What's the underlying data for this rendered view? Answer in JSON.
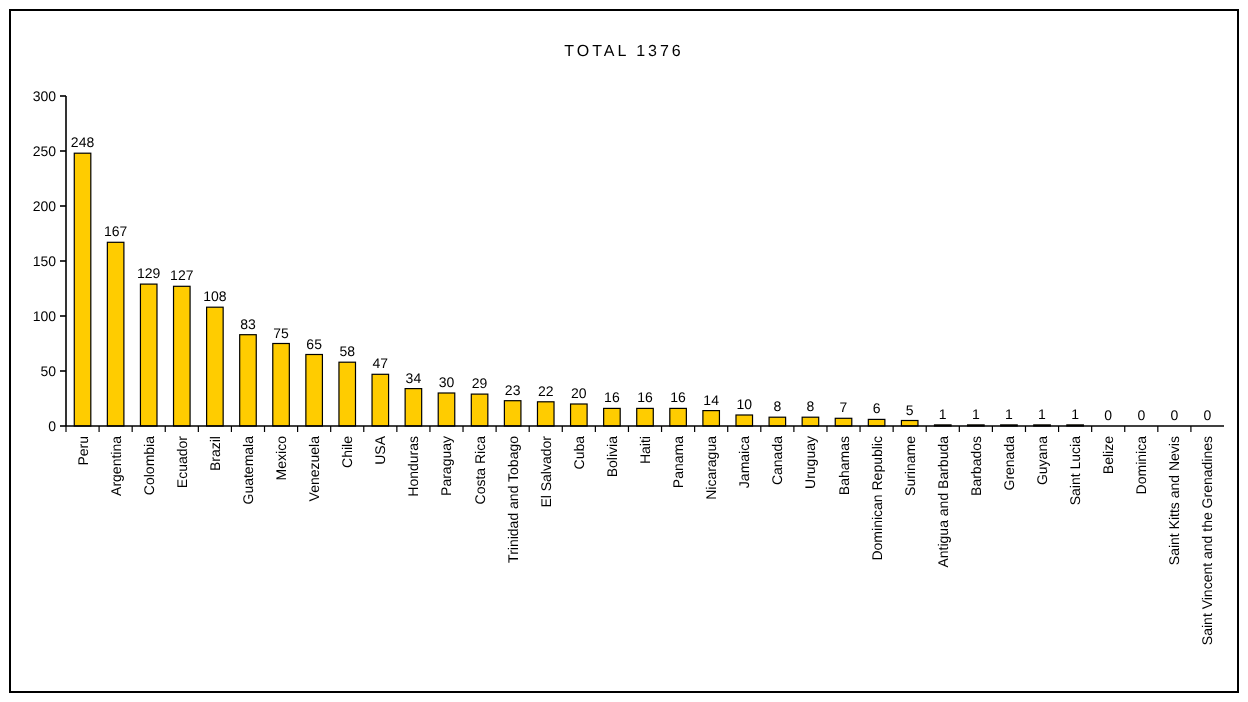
{
  "chart_data": {
    "type": "bar",
    "title": "TOTAL 1376",
    "categories": [
      "Peru",
      "Argentina",
      "Colombia",
      "Ecuador",
      "Brazil",
      "Guatemala",
      "Mexico",
      "Venezuela",
      "Chile",
      "USA",
      "Honduras",
      "Paraguay",
      "Costa Rica",
      "Trinidad and Tobago",
      "El Salvador",
      "Cuba",
      "Bolivia",
      "Haiti",
      "Panama",
      "Nicaragua",
      "Jamaica",
      "Canada",
      "Uruguay",
      "Bahamas",
      "Dominican Republic",
      "Suriname",
      "Antigua and Barbuda",
      "Barbados",
      "Grenada",
      "Guyana",
      "Saint Lucia",
      "Belize",
      "Dominica",
      "Saint Kitts and Nevis",
      "Saint Vincent and the Grenadines"
    ],
    "values": [
      248,
      167,
      129,
      127,
      108,
      83,
      75,
      65,
      58,
      47,
      34,
      30,
      29,
      23,
      22,
      20,
      16,
      16,
      16,
      14,
      10,
      8,
      8,
      7,
      6,
      5,
      1,
      1,
      1,
      1,
      1,
      0,
      0,
      0,
      0
    ],
    "color": "#ffcc00",
    "ylim": [
      0,
      300
    ],
    "yticks": [
      0,
      50,
      100,
      150,
      200,
      250,
      300
    ],
    "grid": false,
    "data_labels": true
  }
}
